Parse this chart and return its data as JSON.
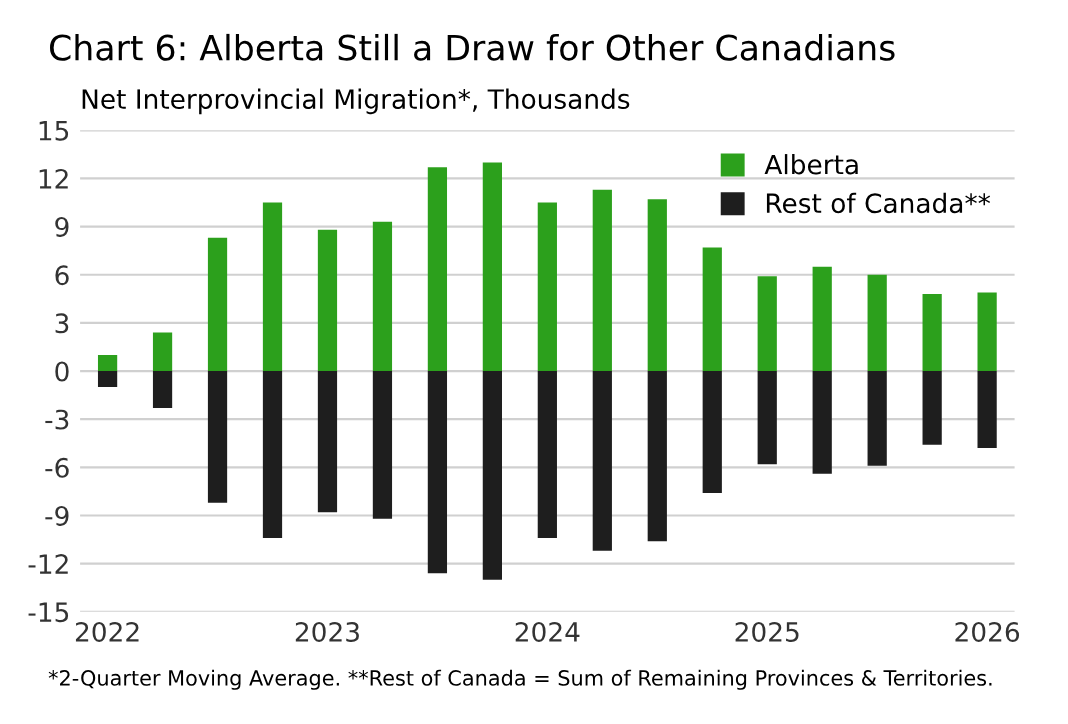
{
  "chart_data": {
    "type": "bar",
    "title": "Chart 6: Alberta Still a Draw for Other Canadians",
    "subtitle": "Net Interprovincial Migration*, Thousands",
    "categories": [
      "2022",
      null,
      null,
      null,
      "2023",
      null,
      null,
      null,
      "2024",
      null,
      null,
      null,
      "2025",
      null,
      null,
      null,
      "2026"
    ],
    "series": [
      {
        "name": "Alberta",
        "color": "#2ca01c",
        "values": [
          1.0,
          2.4,
          8.3,
          10.5,
          8.8,
          9.3,
          12.7,
          13.0,
          10.5,
          11.3,
          10.7,
          7.7,
          5.9,
          6.5,
          6.0,
          4.8,
          4.9
        ]
      },
      {
        "name": "Rest of Canada**",
        "color": "#1e1e1e",
        "values": [
          -1.0,
          -2.3,
          -8.2,
          -10.4,
          -8.8,
          -9.2,
          -12.6,
          -13.0,
          -10.4,
          -11.2,
          -10.6,
          -7.6,
          -5.8,
          -6.4,
          -5.9,
          -4.6,
          -4.8
        ]
      }
    ],
    "stacked": true,
    "ylim": [
      -15,
      15
    ],
    "yticks": [
      -15,
      -12,
      -9,
      -6,
      -3,
      0,
      3,
      6,
      9,
      12,
      15
    ],
    "grid": "y",
    "legend": "top right",
    "annotations": [
      "*2-Quarter Moving Average. **Rest of Canada = Sum of Remaining Provinces & Territories."
    ]
  }
}
